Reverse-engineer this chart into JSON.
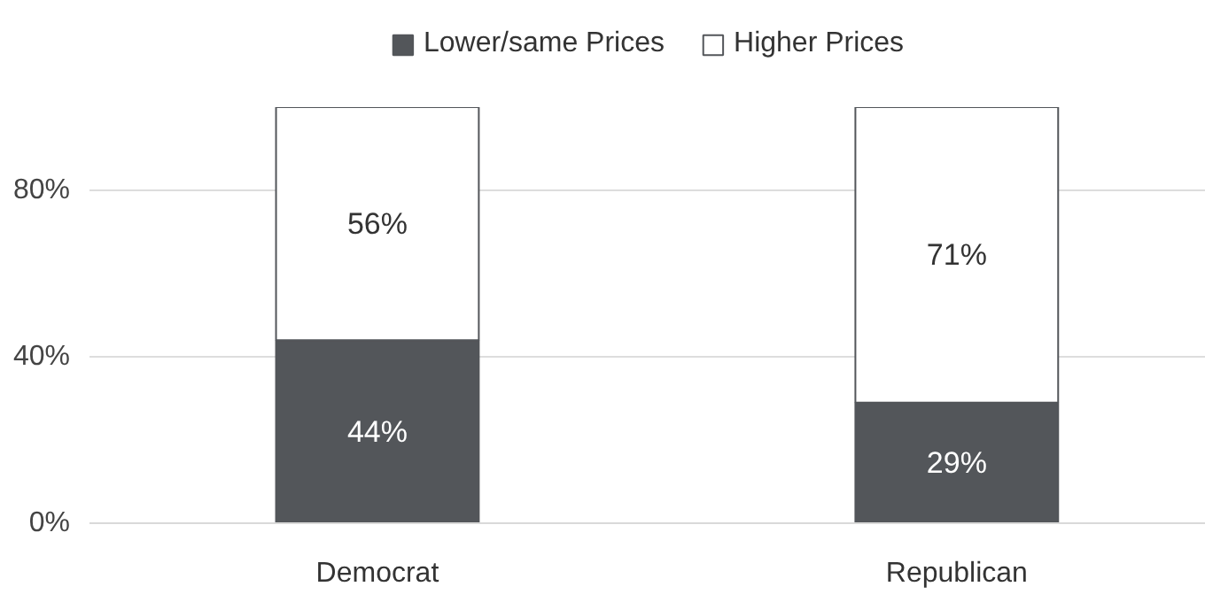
{
  "chart_data": {
    "type": "bar",
    "stacked": true,
    "categories": [
      "Democrat",
      "Republican"
    ],
    "series": [
      {
        "name": "Lower/same Prices",
        "color": "#53565a",
        "values": [
          44,
          29
        ],
        "value_labels": [
          "44%",
          "29%"
        ]
      },
      {
        "name": "Higher Prices",
        "color": "#ffffff",
        "values": [
          56,
          71
        ],
        "value_labels": [
          "56%",
          "71%"
        ]
      }
    ],
    "ylim": [
      0,
      100
    ],
    "yticks": [
      {
        "value": 0,
        "label": "0%"
      },
      {
        "value": 40,
        "label": "40%"
      },
      {
        "value": 80,
        "label": "80%"
      }
    ],
    "grid": "y",
    "legend": "top"
  }
}
